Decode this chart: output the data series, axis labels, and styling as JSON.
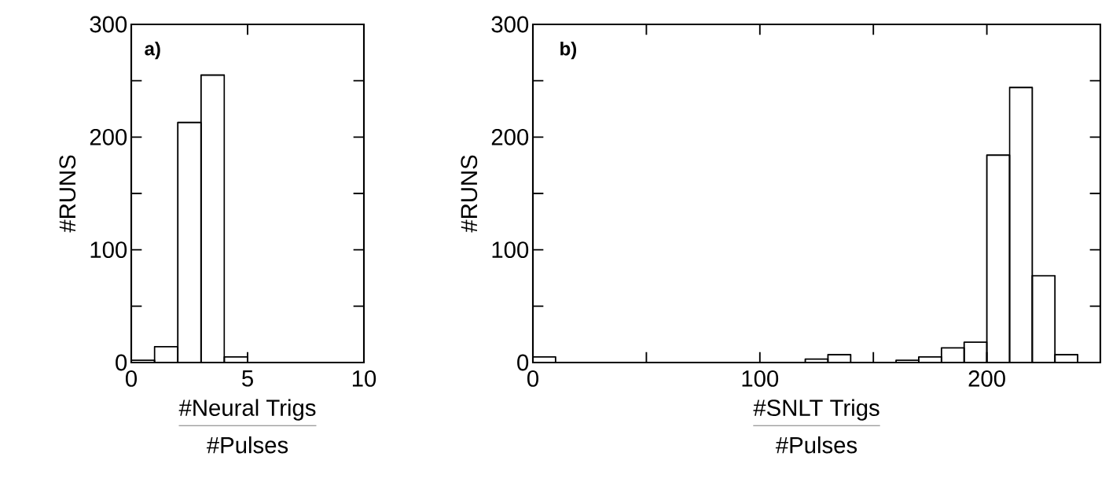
{
  "chart_data": [
    {
      "type": "histogram",
      "xlabel": "#Neural Trigs",
      "ylabel": "#RUNS",
      "annotations": [
        "a)",
        "#Pulses"
      ],
      "bins": [
        0,
        1,
        2,
        3,
        4,
        5,
        6,
        7,
        8,
        9,
        10
      ],
      "values": [
        2,
        14,
        213,
        255,
        5,
        0,
        0,
        0,
        0,
        0
      ],
      "color": "#000000",
      "xlim": [
        0,
        10
      ],
      "xticks": [
        0,
        5,
        10
      ],
      "ylim": [
        0,
        300
      ],
      "yticks": [
        0,
        {
          "value": 50,
          "label": null
        },
        100,
        {
          "value": 150,
          "label": null
        },
        200,
        {
          "value": 250,
          "label": null
        },
        300
      ]
    },
    {
      "type": "histogram",
      "xlabel": "#SNLT Trigs",
      "ylabel": "#RUNS",
      "annotations": [
        "b)",
        "#Pulses"
      ],
      "bins": [
        0,
        10,
        20,
        30,
        40,
        50,
        60,
        70,
        80,
        90,
        100,
        110,
        120,
        130,
        140,
        150,
        160,
        170,
        180,
        190,
        200,
        210,
        220,
        230,
        240
      ],
      "values": [
        5,
        0,
        0,
        0,
        0,
        0,
        0,
        0,
        0,
        0,
        0,
        0,
        3,
        7,
        0,
        0,
        2,
        5,
        13,
        18,
        184,
        244,
        77,
        7
      ],
      "color": "#000000",
      "xlim": [
        0,
        250
      ],
      "xticks": [
        0,
        {
          "value": 50,
          "label": null
        },
        100,
        {
          "value": 150,
          "label": null
        },
        200
      ],
      "ylim": [
        0,
        300
      ],
      "yticks": [
        0,
        {
          "value": 50,
          "label": null
        },
        100,
        {
          "value": 150,
          "label": null
        },
        200,
        {
          "value": 250,
          "label": null
        },
        300
      ]
    }
  ]
}
